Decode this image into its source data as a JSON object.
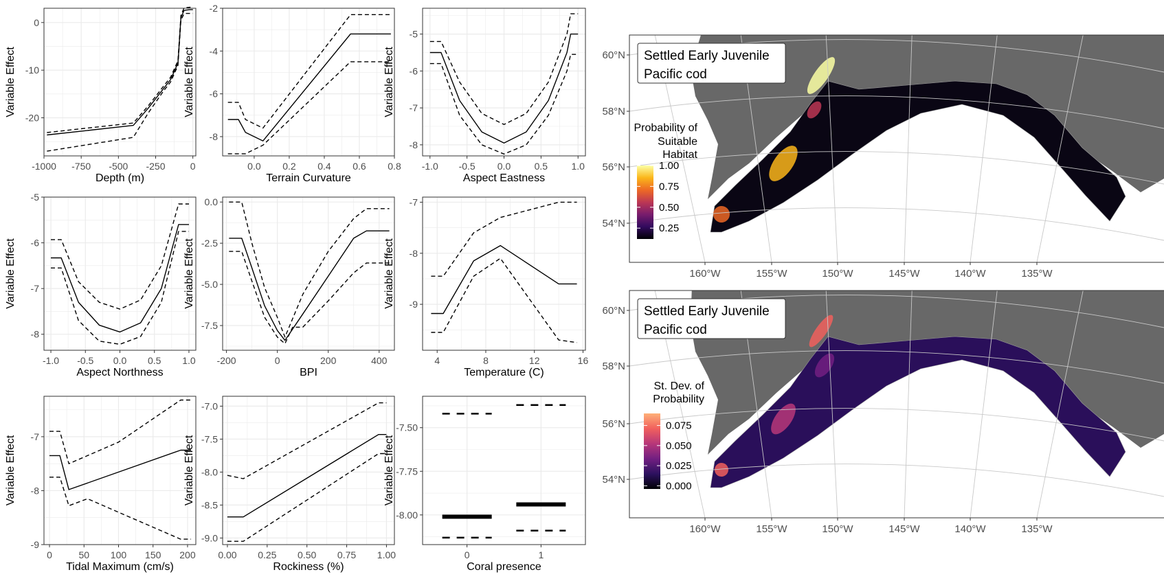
{
  "colors": {
    "panel_border": "#333333",
    "grid": "#ebebeb",
    "line": "#000000",
    "tick_text": "#4d4d4d",
    "land": "#686868",
    "ocean_bg": "#ffffff",
    "inferno": [
      "#000004",
      "#320a5e",
      "#781c6d",
      "#bc3754",
      "#ed6925",
      "#fbb61a",
      "#fcffa4"
    ],
    "magma": [
      "#000004",
      "#2c115f",
      "#721f81",
      "#b73779",
      "#f1605d",
      "#feb078"
    ]
  },
  "chart_data": [
    {
      "type": "line",
      "xlabel": "Depth (m)",
      "ylabel": "Variable Effect",
      "xlim": [
        -1000,
        20
      ],
      "ylim": [
        -28,
        3
      ],
      "xticks": [
        -1000,
        -750,
        -500,
        -250,
        0
      ],
      "xtick_labels": [
        "-1000",
        "-750",
        "-500",
        "-250",
        "0"
      ],
      "yticks": [
        -20,
        -10,
        0
      ],
      "ytick_labels": [
        "-20",
        "-10",
        "0"
      ],
      "series": [
        {
          "style": "solid",
          "x": [
            -980,
            -400,
            -300,
            -200,
            -150,
            -100,
            -80,
            -60,
            -50,
            -20,
            0
          ],
          "y": [
            -23.6,
            -21.6,
            -18,
            -14,
            -12,
            -8.5,
            1,
            2.5,
            2.6,
            2.7,
            2.7
          ]
        },
        {
          "style": "dashed",
          "x": [
            -980,
            -400,
            -300,
            -200,
            -150,
            -100,
            -80,
            -60,
            -50,
            -20,
            0
          ],
          "y": [
            -23.1,
            -21.1,
            -17.5,
            -13.5,
            -11.5,
            -8,
            1.5,
            3,
            3.1,
            3.2,
            3.2
          ]
        },
        {
          "style": "dashed",
          "x": [
            -980,
            -400,
            -300,
            -200,
            -150,
            -100,
            -80,
            -60,
            -50,
            -20,
            0
          ],
          "y": [
            -27,
            -24.1,
            -19,
            -14.5,
            -12.5,
            -9,
            0.5,
            1.8,
            1.9,
            1.9,
            1.9
          ]
        }
      ]
    },
    {
      "type": "line",
      "xlabel": "Terrain Curvature",
      "ylabel": "Variable Effect",
      "xlim": [
        -0.18,
        0.8
      ],
      "ylim": [
        -8.9,
        -2
      ],
      "xticks": [
        0,
        0.2,
        0.4,
        0.6,
        0.8
      ],
      "xtick_labels": [
        "0.0",
        "0.2",
        "0.4",
        "0.6",
        "0.8"
      ],
      "yticks": [
        -8,
        -6,
        -4,
        -2
      ],
      "ytick_labels": [
        "-8",
        "-6",
        "-4",
        "-2"
      ],
      "series": [
        {
          "style": "solid",
          "x": [
            -0.15,
            -0.09,
            -0.05,
            0.05,
            0.55,
            0.78
          ],
          "y": [
            -7.2,
            -7.2,
            -7.8,
            -8.2,
            -3.2,
            -3.2
          ]
        },
        {
          "style": "dashed",
          "x": [
            -0.15,
            -0.09,
            -0.05,
            0.05,
            0.55,
            0.78
          ],
          "y": [
            -6.4,
            -6.4,
            -7.2,
            -7.6,
            -2.3,
            -2.3
          ]
        },
        {
          "style": "dashed",
          "x": [
            -0.15,
            -0.09,
            -0.05,
            0.05,
            0.55,
            0.78
          ],
          "y": [
            -8.8,
            -8.8,
            -8.8,
            -8.4,
            -4.5,
            -4.5
          ]
        }
      ]
    },
    {
      "type": "line",
      "xlabel": "Aspect Eastness",
      "ylabel": "Variable Effect",
      "xlim": [
        -1.1,
        1.1
      ],
      "ylim": [
        -8.3,
        -4.3
      ],
      "xticks": [
        -1,
        -0.5,
        0,
        0.5,
        1
      ],
      "xtick_labels": [
        "-1.0",
        "-0.5",
        "0.0",
        "0.5",
        "1.0"
      ],
      "yticks": [
        -8,
        -7,
        -6,
        -5
      ],
      "ytick_labels": [
        "-8",
        "-7",
        "-6",
        "-5"
      ],
      "series": [
        {
          "style": "solid",
          "x": [
            -1,
            -0.85,
            -0.6,
            -0.3,
            0,
            0.3,
            0.6,
            0.85,
            0.9,
            1
          ],
          "y": [
            -5.5,
            -5.5,
            -6.8,
            -7.65,
            -7.95,
            -7.65,
            -6.8,
            -5.5,
            -5.0,
            -5.0
          ]
        },
        {
          "style": "dashed",
          "x": [
            -1,
            -0.85,
            -0.6,
            -0.3,
            0,
            0.3,
            0.6,
            0.85,
            0.9,
            1
          ],
          "y": [
            -5.2,
            -5.2,
            -6.3,
            -7.15,
            -7.45,
            -7.15,
            -6.3,
            -5.0,
            -4.45,
            -4.45
          ]
        },
        {
          "style": "dashed",
          "x": [
            -1,
            -0.85,
            -0.6,
            -0.3,
            0,
            0.3,
            0.6,
            0.85,
            0.9,
            1
          ],
          "y": [
            -5.8,
            -5.8,
            -7.2,
            -8.0,
            -8.25,
            -8.0,
            -7.2,
            -6.0,
            -5.55,
            -5.55
          ]
        }
      ]
    },
    {
      "type": "line",
      "xlabel": "Aspect Northness",
      "ylabel": "Variable Effect",
      "xlim": [
        -1.1,
        1.1
      ],
      "ylim": [
        -8.35,
        -5
      ],
      "xticks": [
        -1,
        -0.5,
        0,
        0.5,
        1
      ],
      "xtick_labels": [
        "-1.0",
        "-0.5",
        "0.0",
        "0.5",
        "1.0"
      ],
      "yticks": [
        -8,
        -7,
        -6,
        -5
      ],
      "ytick_labels": [
        "-8",
        "-7",
        "-6",
        "-5"
      ],
      "series": [
        {
          "style": "solid",
          "x": [
            -1,
            -0.85,
            -0.6,
            -0.3,
            0,
            0.3,
            0.6,
            0.85,
            1
          ],
          "y": [
            -6.33,
            -6.33,
            -7.3,
            -7.8,
            -7.95,
            -7.75,
            -7.0,
            -5.6,
            -5.6
          ]
        },
        {
          "style": "dashed",
          "x": [
            -1,
            -0.85,
            -0.6,
            -0.3,
            0,
            0.3,
            0.6,
            0.85,
            1
          ],
          "y": [
            -5.93,
            -5.93,
            -6.85,
            -7.3,
            -7.45,
            -7.25,
            -6.5,
            -5.15,
            -5.15
          ]
        },
        {
          "style": "dashed",
          "x": [
            -1,
            -0.85,
            -0.6,
            -0.3,
            0,
            0.3,
            0.6,
            0.85,
            1
          ],
          "y": [
            -6.55,
            -6.55,
            -7.7,
            -8.15,
            -8.22,
            -8.05,
            -7.3,
            -5.75,
            -5.75
          ]
        }
      ]
    },
    {
      "type": "line",
      "xlabel": "BPI",
      "ylabel": "Variable Effect",
      "xlim": [
        -215,
        460
      ],
      "ylim": [
        -9,
        0.3
      ],
      "xticks": [
        -200,
        0,
        200,
        400
      ],
      "xtick_labels": [
        "-200",
        "0",
        "200",
        "400"
      ],
      "yticks": [
        -7.5,
        -5,
        -2.5,
        0
      ],
      "ytick_labels": [
        "-7.5",
        "-5.0",
        "-2.5",
        "0.0"
      ],
      "series": [
        {
          "style": "solid",
          "x": [
            -190,
            -140,
            -100,
            -50,
            0,
            30,
            100,
            200,
            300,
            350,
            440
          ],
          "y": [
            -2.2,
            -2.2,
            -4.0,
            -6.3,
            -7.8,
            -8.4,
            -6.8,
            -4.5,
            -2.2,
            -1.75,
            -1.75
          ]
        },
        {
          "style": "dashed",
          "x": [
            -190,
            -140,
            -100,
            -50,
            0,
            30,
            100,
            200,
            300,
            350,
            440
          ],
          "y": [
            0,
            0,
            -2.5,
            -5.2,
            -7.0,
            -8.2,
            -5.6,
            -3.0,
            -1.0,
            -0.4,
            -0.4
          ]
        },
        {
          "style": "dashed",
          "x": [
            -190,
            -140,
            -100,
            -50,
            0,
            30,
            60,
            100,
            200,
            300,
            350,
            440
          ],
          "y": [
            -3.0,
            -3.0,
            -4.8,
            -7.0,
            -8.2,
            -8.6,
            -7.6,
            -7.6,
            -6.0,
            -4.3,
            -3.7,
            -3.7
          ]
        }
      ]
    },
    {
      "type": "line",
      "xlabel": "Temperature (C)",
      "ylabel": "Variable Effect",
      "xlim": [
        2.8,
        16.2
      ],
      "ylim": [
        -9.9,
        -6.9
      ],
      "xticks": [
        4,
        8,
        12,
        16
      ],
      "xtick_labels": [
        "4",
        "8",
        "12",
        "16"
      ],
      "yticks": [
        -9,
        -8,
        -7
      ],
      "ytick_labels": [
        "-9",
        "-8",
        "-7"
      ],
      "series": [
        {
          "style": "solid",
          "x": [
            3.5,
            4.5,
            7,
            9.2,
            14,
            15.5
          ],
          "y": [
            -9.18,
            -9.18,
            -8.15,
            -7.85,
            -8.6,
            -8.6
          ]
        },
        {
          "style": "dashed",
          "x": [
            3.5,
            4.5,
            7,
            9.2,
            14,
            15.5
          ],
          "y": [
            -8.45,
            -8.45,
            -7.6,
            -7.3,
            -7.0,
            -7.0
          ]
        },
        {
          "style": "dashed",
          "x": [
            3.5,
            4.5,
            7,
            9.2,
            14,
            15.5
          ],
          "y": [
            -9.55,
            -9.55,
            -8.45,
            -8.1,
            -9.7,
            -9.75
          ]
        }
      ]
    },
    {
      "type": "line",
      "xlabel": "Tidal Maximum (cm/s)",
      "ylabel": "Variable Effect",
      "xlim": [
        -8,
        212
      ],
      "ylim": [
        -9,
        -6.25
      ],
      "xticks": [
        0,
        50,
        100,
        150,
        200
      ],
      "xtick_labels": [
        "0",
        "50",
        "100",
        "150",
        "200"
      ],
      "yticks": [
        -9,
        -8,
        -7
      ],
      "ytick_labels": [
        "-9",
        "-8",
        "-7"
      ],
      "series": [
        {
          "style": "solid",
          "x": [
            0,
            15,
            28,
            190,
            205
          ],
          "y": [
            -7.35,
            -7.35,
            -7.98,
            -7.25,
            -7.25
          ]
        },
        {
          "style": "dashed",
          "x": [
            0,
            15,
            28,
            100,
            190,
            205
          ],
          "y": [
            -6.9,
            -6.9,
            -7.5,
            -7.1,
            -6.32,
            -6.32
          ]
        },
        {
          "style": "dashed",
          "x": [
            0,
            15,
            28,
            55,
            100,
            190,
            205
          ],
          "y": [
            -7.75,
            -7.75,
            -8.28,
            -8.15,
            -8.4,
            -8.9,
            -8.9
          ]
        }
      ]
    },
    {
      "type": "line",
      "xlabel": "Rockiness (%)",
      "ylabel": "Variable Effect",
      "xlim": [
        -0.03,
        1.05
      ],
      "ylim": [
        -9.1,
        -6.85
      ],
      "xticks": [
        0,
        0.25,
        0.5,
        0.75,
        1
      ],
      "xtick_labels": [
        "0.00",
        "0.25",
        "0.50",
        "0.75",
        "1.00"
      ],
      "yticks": [
        -9,
        -8.5,
        -8,
        -7.5,
        -7
      ],
      "ytick_labels": [
        "-9.0",
        "-8.5",
        "-8.0",
        "-7.5",
        "-7.0"
      ],
      "series": [
        {
          "style": "solid",
          "x": [
            0,
            0.1,
            0.95,
            1
          ],
          "y": [
            -8.68,
            -8.68,
            -7.43,
            -7.43
          ]
        },
        {
          "style": "dashed",
          "x": [
            0,
            0.1,
            0.95,
            1
          ],
          "y": [
            -8.05,
            -8.1,
            -6.95,
            -6.95
          ]
        },
        {
          "style": "dashed",
          "x": [
            0,
            0.1,
            0.95,
            1
          ],
          "y": [
            -9.05,
            -9.05,
            -7.72,
            -7.72
          ]
        }
      ]
    },
    {
      "type": "step",
      "xlabel": "Coral presence",
      "ylabel": "Variable Effect",
      "ylim": [
        -8.17,
        -7.32
      ],
      "categories": [
        "0",
        "1"
      ],
      "yticks": [
        -8,
        -7.75,
        -7.5
      ],
      "ytick_labels": [
        "-8.00",
        "-7.75",
        "-7.50"
      ],
      "series": [
        {
          "style": "solid",
          "values": [
            -8.01,
            -7.94
          ]
        },
        {
          "style": "dashed",
          "values": [
            -7.42,
            -7.37
          ]
        },
        {
          "style": "dashed",
          "values": [
            -8.13,
            -8.09
          ]
        }
      ]
    }
  ],
  "maps": [
    {
      "title_line1": "Settled Early Juvenile",
      "title_line2": "Pacific cod",
      "legend_title_lines": [
        "Probability of",
        "Suitable",
        "Habitat"
      ],
      "legend_labels": [
        "1.00",
        "0.75",
        "0.50",
        "0.25"
      ],
      "legend_values": [
        1.0,
        0.75,
        0.5,
        0.25
      ],
      "palette": "inferno",
      "lat_labels": [
        "60°N",
        "58°N",
        "56°N",
        "54°N"
      ],
      "lon_labels": [
        "160°W",
        "155°W",
        "150°W",
        "145°W",
        "140°W",
        "135°W"
      ]
    },
    {
      "title_line1": "Settled Early Juvenile",
      "title_line2": "Pacific cod",
      "legend_title_lines": [
        "St. Dev. of",
        "Probability"
      ],
      "legend_labels": [
        "0.075",
        "0.050",
        "0.025",
        "0.000"
      ],
      "legend_values": [
        0.075,
        0.05,
        0.025,
        0.0
      ],
      "legend_max": 0.09,
      "palette": "magma",
      "lat_labels": [
        "60°N",
        "58°N",
        "56°N",
        "54°N"
      ],
      "lon_labels": [
        "160°W",
        "155°W",
        "150°W",
        "145°W",
        "140°W",
        "135°W"
      ]
    }
  ]
}
